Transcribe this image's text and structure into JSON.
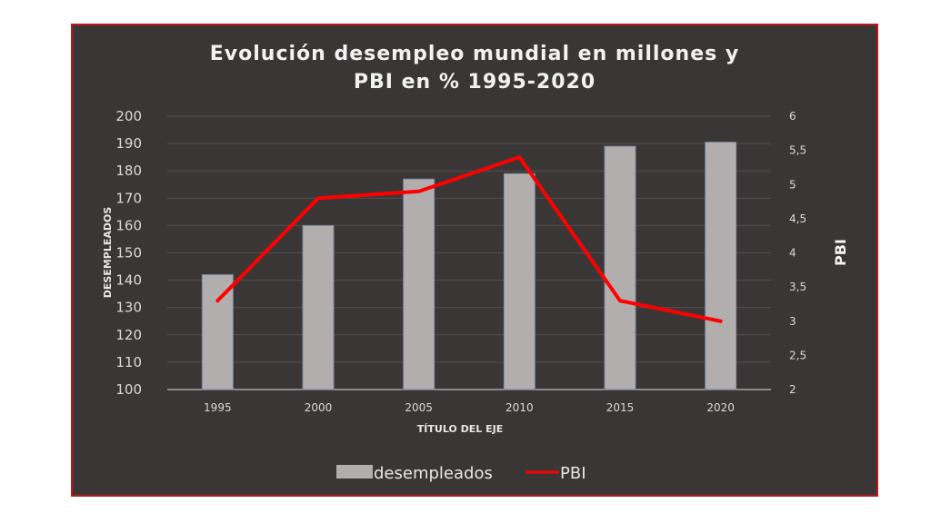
{
  "chart_data": {
    "type": "bar+line",
    "title_lines": [
      "Evolución desempleo mundial en millones y",
      "PBI en % 1995-2020"
    ],
    "categories": [
      "1995",
      "2000",
      "2005",
      "2010",
      "2015",
      "2020"
    ],
    "series": [
      {
        "name": "desempleados",
        "type": "bar",
        "axis": "left",
        "values": [
          142,
          160,
          177,
          179,
          189,
          190.5
        ],
        "color": "#b3aeae"
      },
      {
        "name": "PBI",
        "type": "line",
        "axis": "right",
        "values": [
          3.3,
          4.8,
          4.9,
          5.4,
          3.3,
          3.0
        ],
        "color": "#ff0000"
      }
    ],
    "xlabel": "TÍTULO DEL EJE",
    "ylabel": "DESEMPLEADOS",
    "y2label": "PBI",
    "ylim": [
      100,
      200
    ],
    "y2lim": [
      2,
      6
    ],
    "yticks": [
      "100",
      "110",
      "120",
      "130",
      "140",
      "150",
      "160",
      "170",
      "180",
      "190",
      "200"
    ],
    "y2ticks": [
      "2",
      "2,5",
      "3",
      "3,5",
      "4",
      "4,5",
      "5",
      "5,5",
      "6"
    ],
    "grid": true,
    "legend": {
      "placement": "bottom",
      "entries": [
        "desempleados",
        "PBI"
      ]
    },
    "colors": {
      "background": "#3a3636",
      "border": "#c0151b",
      "grid": "#545050",
      "bar": "#b3aeae",
      "bar_edge": "#7b8aa0",
      "line": "#ff0000"
    }
  }
}
